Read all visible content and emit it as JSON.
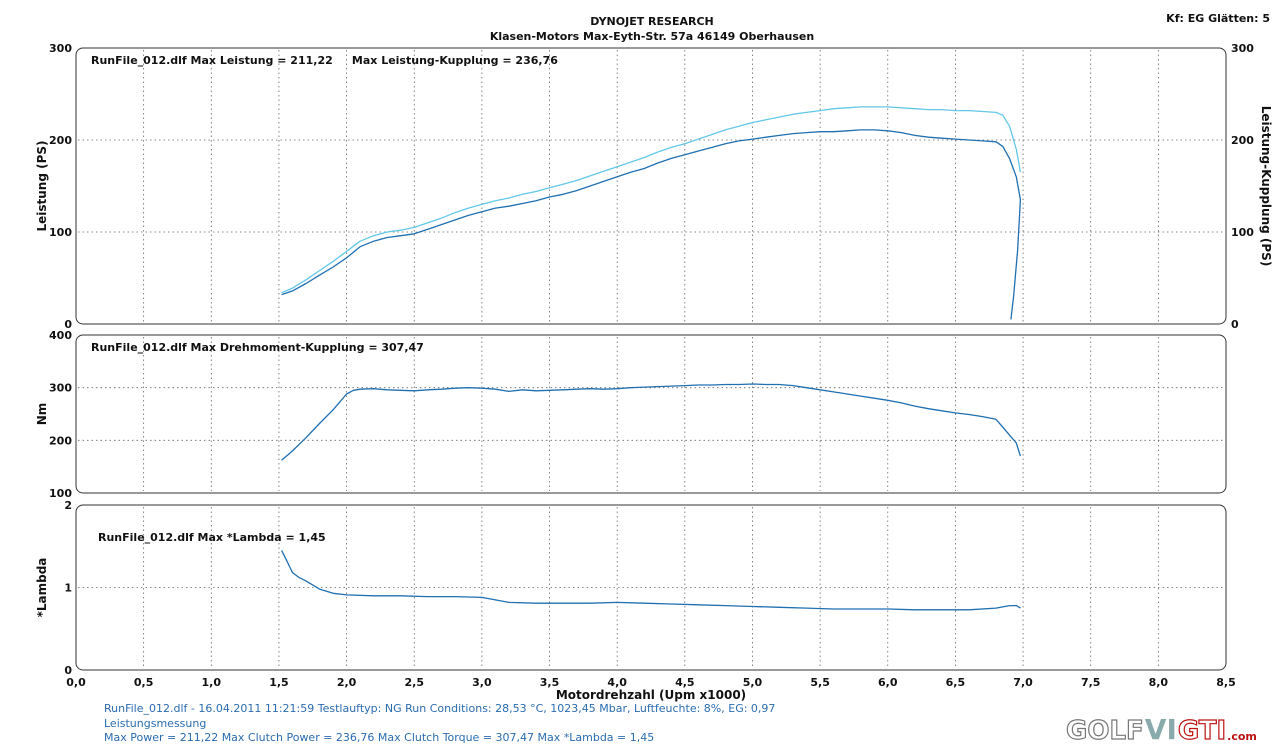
{
  "header": {
    "company": "DYNOJET RESEARCH",
    "address": "Klasen-Motors   Max-Eyth-Str. 57a   46149 Oberhausen",
    "corner": "Kf: EG  Glätten: 5"
  },
  "chart_data": [
    {
      "type": "line",
      "panel": "power",
      "annotation": "RunFile_012.dlf Max Leistung = 211,22     Max Leistung-Kupplung = 236,76",
      "ylabel": "Leistung (PS)",
      "ylabel_right": "Leistung-Kupplung (PS)",
      "ylim": [
        0,
        300
      ],
      "yticks": [
        "0",
        "100",
        "200",
        "300"
      ],
      "xlim": [
        0,
        8.5
      ],
      "grid": true,
      "series": [
        {
          "name": "Leistung",
          "color": "#1f6fb2",
          "x": [
            1.52,
            1.6,
            1.7,
            1.8,
            1.9,
            2.0,
            2.1,
            2.2,
            2.3,
            2.4,
            2.5,
            2.6,
            2.7,
            2.8,
            2.9,
            3.0,
            3.1,
            3.2,
            3.3,
            3.4,
            3.5,
            3.6,
            3.7,
            3.8,
            3.9,
            4.0,
            4.1,
            4.2,
            4.3,
            4.4,
            4.5,
            4.6,
            4.7,
            4.8,
            4.9,
            5.0,
            5.1,
            5.2,
            5.3,
            5.4,
            5.5,
            5.6,
            5.7,
            5.8,
            5.9,
            6.0,
            6.1,
            6.2,
            6.3,
            6.4,
            6.5,
            6.6,
            6.7,
            6.8,
            6.85,
            6.9,
            6.95,
            6.98,
            6.96,
            6.93,
            6.91
          ],
          "values": [
            32,
            36,
            44,
            53,
            62,
            72,
            84,
            90,
            94,
            96,
            98,
            103,
            108,
            113,
            118,
            122,
            126,
            128,
            131,
            134,
            138,
            141,
            145,
            150,
            155,
            160,
            165,
            169,
            175,
            180,
            184,
            188,
            192,
            196,
            199,
            201,
            203,
            205,
            207,
            208,
            209,
            209,
            210,
            211,
            211,
            210,
            208,
            205,
            203,
            202,
            201,
            200,
            199,
            198,
            193,
            180,
            160,
            135,
            80,
            30,
            5
          ]
        },
        {
          "name": "Leistung-Kupplung",
          "color": "#63c7e8",
          "x": [
            1.52,
            1.6,
            1.7,
            1.8,
            1.9,
            2.0,
            2.1,
            2.2,
            2.3,
            2.4,
            2.5,
            2.6,
            2.7,
            2.8,
            2.9,
            3.0,
            3.1,
            3.2,
            3.3,
            3.4,
            3.5,
            3.6,
            3.7,
            3.8,
            3.9,
            4.0,
            4.1,
            4.2,
            4.3,
            4.4,
            4.5,
            4.6,
            4.7,
            4.8,
            4.9,
            5.0,
            5.1,
            5.2,
            5.3,
            5.4,
            5.5,
            5.6,
            5.7,
            5.8,
            5.9,
            6.0,
            6.1,
            6.2,
            6.3,
            6.4,
            6.5,
            6.6,
            6.7,
            6.8,
            6.85,
            6.9,
            6.95,
            6.98
          ],
          "values": [
            34,
            39,
            48,
            58,
            68,
            79,
            90,
            96,
            100,
            102,
            105,
            110,
            115,
            121,
            126,
            130,
            134,
            137,
            141,
            144,
            148,
            152,
            156,
            161,
            166,
            171,
            176,
            181,
            187,
            192,
            196,
            201,
            206,
            211,
            215,
            219,
            222,
            225,
            228,
            230,
            232,
            234,
            235,
            236,
            236,
            236,
            235,
            234,
            233,
            233,
            232,
            232,
            231,
            230,
            227,
            215,
            190,
            165
          ]
        }
      ]
    },
    {
      "type": "line",
      "panel": "torque",
      "annotation": "RunFile_012.dlf Max Drehmoment-Kupplung = 307,47",
      "ylabel": "Nm",
      "ylim": [
        100,
        400
      ],
      "yticks": [
        "100",
        "200",
        "300",
        "400"
      ],
      "xlim": [
        0,
        8.5
      ],
      "grid": true,
      "series": [
        {
          "name": "Drehmoment-Kupplung",
          "color": "#1f6fb2",
          "x": [
            1.52,
            1.6,
            1.7,
            1.8,
            1.9,
            2.0,
            2.05,
            2.1,
            2.2,
            2.3,
            2.4,
            2.5,
            2.6,
            2.7,
            2.8,
            2.9,
            3.0,
            3.1,
            3.2,
            3.3,
            3.4,
            3.5,
            3.6,
            3.7,
            3.8,
            3.9,
            4.0,
            4.1,
            4.2,
            4.3,
            4.4,
            4.5,
            4.6,
            4.7,
            4.8,
            4.9,
            5.0,
            5.1,
            5.2,
            5.3,
            5.4,
            5.5,
            5.6,
            5.7,
            5.8,
            5.9,
            6.0,
            6.1,
            6.2,
            6.3,
            6.4,
            6.5,
            6.6,
            6.7,
            6.8,
            6.85,
            6.9,
            6.95,
            6.98
          ],
          "values": [
            162,
            180,
            205,
            232,
            258,
            288,
            295,
            297,
            298,
            296,
            295,
            294,
            296,
            297,
            299,
            300,
            299,
            297,
            293,
            296,
            294,
            295,
            296,
            297,
            298,
            297,
            298,
            300,
            301,
            302,
            303,
            304,
            305,
            305,
            306,
            306,
            307,
            306,
            306,
            304,
            300,
            296,
            292,
            288,
            284,
            280,
            276,
            271,
            265,
            260,
            256,
            252,
            249,
            245,
            240,
            225,
            210,
            195,
            170
          ]
        }
      ]
    },
    {
      "type": "line",
      "panel": "lambda",
      "annotation": "RunFile_012.dlf Max *Lambda = 1,45",
      "ylabel": "*Lambda",
      "ylim": [
        0,
        2
      ],
      "yticks": [
        "0",
        "1",
        "2"
      ],
      "xlim": [
        0,
        8.5
      ],
      "xlabel": "Motordrehzahl (Upm x1000)",
      "xticks": [
        "0,0",
        "0,5",
        "1,0",
        "1,5",
        "2,0",
        "2,5",
        "3,0",
        "3,5",
        "4,0",
        "4,5",
        "5,0",
        "5,5",
        "6,0",
        "6,5",
        "7,0",
        "7,5",
        "8,0",
        "8,5"
      ],
      "grid": true,
      "series": [
        {
          "name": "*Lambda",
          "color": "#1f6fb2",
          "x": [
            1.52,
            1.55,
            1.6,
            1.65,
            1.7,
            1.8,
            1.9,
            2.0,
            2.2,
            2.4,
            2.6,
            2.8,
            3.0,
            3.1,
            3.2,
            3.4,
            3.6,
            3.8,
            4.0,
            4.2,
            4.4,
            4.6,
            4.8,
            5.0,
            5.2,
            5.4,
            5.6,
            5.8,
            6.0,
            6.2,
            6.4,
            6.6,
            6.8,
            6.9,
            6.95,
            6.98
          ],
          "values": [
            1.45,
            1.35,
            1.18,
            1.12,
            1.08,
            0.98,
            0.93,
            0.91,
            0.9,
            0.9,
            0.89,
            0.89,
            0.88,
            0.85,
            0.82,
            0.81,
            0.81,
            0.81,
            0.82,
            0.81,
            0.8,
            0.79,
            0.78,
            0.77,
            0.76,
            0.75,
            0.74,
            0.74,
            0.74,
            0.73,
            0.73,
            0.73,
            0.75,
            0.78,
            0.78,
            0.75
          ]
        }
      ]
    }
  ],
  "footer": {
    "line1": "RunFile_012.dlf - 16.04.2011 11:21:59  Testlauftyp: NG  Run Conditions: 28,53 °C, 1023,45 Mbar,  Luftfeuchte: 8%, EG: 0,97",
    "line2": "Leistungsmessung",
    "line3": "Max Power = 211,22  Max Clutch Power = 236,76  Max Clutch Torque = 307,47  Max *Lambda = 1,45"
  },
  "logo": {
    "golf": "GOLF",
    "slash": "VI",
    "gti": "GTI",
    "com": ".com"
  }
}
